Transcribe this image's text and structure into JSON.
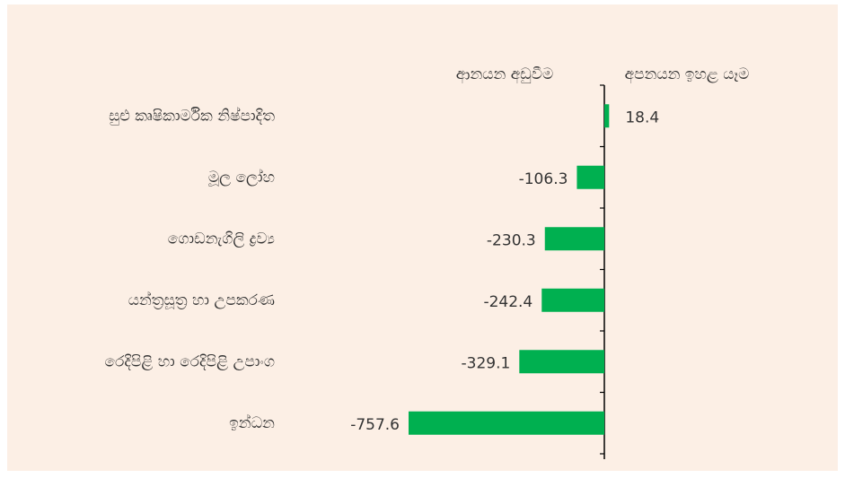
{
  "chart_data": {
    "type": "bar",
    "orientation": "horizontal",
    "annotations": [
      "ආනයන අඩුවීම",
      "අපනයන ඉහළ යෑම"
    ],
    "categories": [
      "සුළු කෘෂිකාර්මික නිෂ්පාදිත",
      "මූල ලෝහ",
      "ගොඩනැගිලි ද්‍රව්‍ය",
      "යන්ත්‍රසූත්‍ර හා උපකරණ",
      "රෙදිපිළි හා රෙදිපිළි උපාංග",
      "ඉන්ධන"
    ],
    "values": [
      18.4,
      -106.3,
      -230.3,
      -242.4,
      -329.1,
      -757.6
    ],
    "color": "#00b050",
    "xlim": [
      -800,
      100
    ]
  }
}
